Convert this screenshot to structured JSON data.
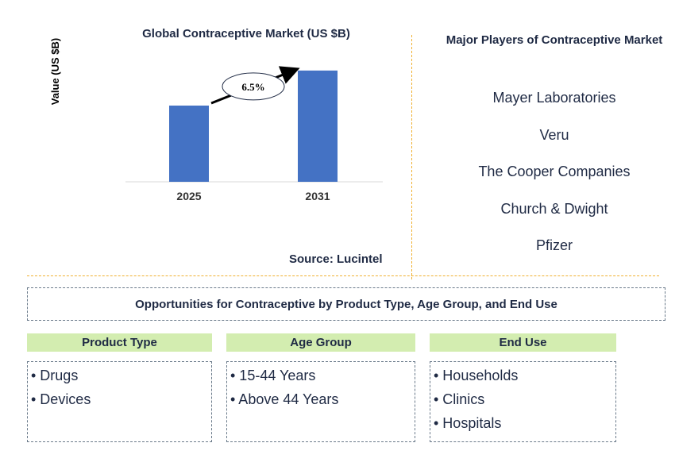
{
  "chart_data": {
    "type": "bar",
    "title": "Global Contraceptive Market (US $B)",
    "ylabel": "Value (US $B)",
    "xlabel": "",
    "categories": [
      "2025",
      "2031"
    ],
    "values": [
      1.0,
      1.46
    ],
    "ylim": [
      0,
      1.5
    ],
    "bar_color": "#4472c4",
    "annotation": {
      "label": "6.5%",
      "type": "CAGR arrow"
    },
    "source": "Source: Lucintel"
  },
  "players": {
    "title": "Major Players of Contraceptive Market",
    "items": [
      "Mayer Laboratories",
      "Veru",
      "The Cooper Companies",
      "Church & Dwight",
      "Pfizer"
    ]
  },
  "opportunities": {
    "title": "Opportunities for Contraceptive by Product Type, Age Group, and End Use",
    "header_color": "#d3edb0",
    "segments": [
      {
        "header": "Product Type",
        "items": [
          "• Drugs",
          "• Devices"
        ]
      },
      {
        "header": "Age Group",
        "items": [
          "• 15-44 Years",
          "• Above 44 Years"
        ]
      },
      {
        "header": "End Use",
        "items": [
          "• Households",
          "• Clinics",
          "• Hospitals"
        ]
      }
    ]
  }
}
